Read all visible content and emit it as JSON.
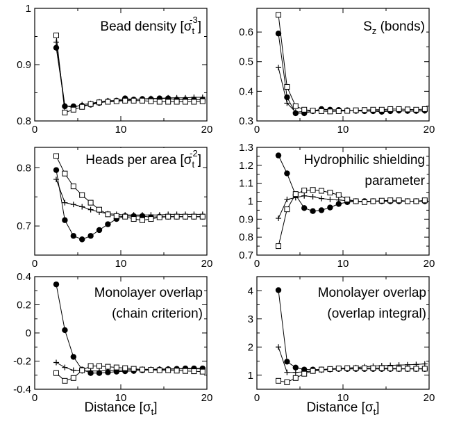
{
  "chart_data": [
    {
      "type": "line",
      "title": "Bead density [σ_t^-3]",
      "title_lines": [
        {
          "text": "Bead density [σ",
          "sub": "t",
          "sup": "-3",
          "after": "]"
        }
      ],
      "xlim": [
        0,
        20
      ],
      "ylim": [
        0.8,
        1.0
      ],
      "xticks": [
        0,
        10,
        20
      ],
      "yticks": [
        0.8,
        0.9,
        1.0
      ],
      "ytick_labels": [
        "0.8",
        "0.9",
        "1"
      ],
      "series": [
        {
          "marker": "filled-circle",
          "x": [
            2.5,
            3.5,
            4.5,
            5.5,
            6.5,
            7.5,
            8.5,
            9.5,
            10.5,
            11.5,
            12.5,
            13.5,
            14.5,
            15.5,
            16.5,
            17.5,
            18.5,
            19.5
          ],
          "y": [
            0.93,
            0.826,
            0.826,
            0.827,
            0.829,
            0.832,
            0.835,
            0.836,
            0.84,
            0.838,
            0.839,
            0.839,
            0.84,
            0.84,
            0.838,
            0.838,
            0.838,
            0.838
          ]
        },
        {
          "marker": "plus",
          "x": [
            2.5,
            3.5,
            4.5,
            5.5,
            6.5,
            7.5,
            8.5,
            9.5,
            10.5,
            11.5,
            12.5,
            13.5,
            14.5,
            15.5,
            16.5,
            17.5,
            18.5,
            19.5
          ],
          "y": [
            0.94,
            0.827,
            0.824,
            0.829,
            0.831,
            0.834,
            0.836,
            0.836,
            0.837,
            0.838,
            0.839,
            0.84,
            0.84,
            0.841,
            0.841,
            0.841,
            0.842,
            0.842
          ]
        },
        {
          "marker": "open-square",
          "x": [
            2.5,
            3.5,
            4.5,
            5.5,
            6.5,
            7.5,
            8.5,
            9.5,
            10.5,
            11.5,
            12.5,
            13.5,
            14.5,
            15.5,
            16.5,
            17.5,
            18.5,
            19.5
          ],
          "y": [
            0.952,
            0.815,
            0.82,
            0.825,
            0.83,
            0.833,
            0.834,
            0.835,
            0.836,
            0.836,
            0.836,
            0.835,
            0.834,
            0.834,
            0.834,
            0.834,
            0.834,
            0.835
          ]
        }
      ]
    },
    {
      "type": "line",
      "title": "S_z (bonds)",
      "title_lines": [
        {
          "text": "S",
          "sub": "z",
          "sup": "",
          "after": " (bonds)"
        }
      ],
      "xlim": [
        0,
        20
      ],
      "ylim": [
        0.3,
        0.68
      ],
      "xticks": [
        0,
        10,
        20
      ],
      "yticks": [
        0.3,
        0.4,
        0.5,
        0.6
      ],
      "ytick_labels": [
        "0.3",
        "0.4",
        "0.5",
        "0.6"
      ],
      "series": [
        {
          "marker": "filled-circle",
          "x": [
            2.5,
            3.5,
            4.5,
            5.5,
            6.5,
            7.5,
            8.5,
            9.5,
            10.5,
            11.5,
            12.5,
            13.5,
            14.5,
            15.5,
            16.5,
            17.5,
            18.5,
            19.5
          ],
          "y": [
            0.595,
            0.38,
            0.326,
            0.326,
            0.333,
            0.34,
            0.338,
            0.337,
            0.336,
            0.334,
            0.333,
            0.333,
            0.331,
            0.333,
            0.335,
            0.334,
            0.334,
            0.335
          ]
        },
        {
          "marker": "plus",
          "x": [
            2.5,
            3.5,
            4.5,
            5.5,
            6.5,
            7.5,
            8.5,
            9.5,
            10.5,
            11.5,
            12.5,
            13.5,
            14.5,
            15.5,
            16.5,
            17.5,
            18.5,
            19.5
          ],
          "y": [
            0.48,
            0.36,
            0.33,
            0.332,
            0.335,
            0.338,
            0.337,
            0.337,
            0.336,
            0.335,
            0.334,
            0.334,
            0.335,
            0.334,
            0.334,
            0.333,
            0.333,
            0.334
          ]
        },
        {
          "marker": "open-square",
          "x": [
            2.5,
            3.5,
            4.5,
            5.5,
            6.5,
            7.5,
            8.5,
            9.5,
            10.5,
            11.5,
            12.5,
            13.5,
            14.5,
            15.5,
            16.5,
            17.5,
            18.5,
            19.5
          ],
          "y": [
            0.658,
            0.415,
            0.35,
            0.338,
            0.335,
            0.333,
            0.332,
            0.333,
            0.334,
            0.336,
            0.337,
            0.338,
            0.338,
            0.34,
            0.34,
            0.339,
            0.338,
            0.34
          ]
        }
      ]
    },
    {
      "type": "line",
      "title": "Heads per area [σ_t^-2]",
      "title_lines": [
        {
          "text": "Heads per area [σ",
          "sub": "t",
          "sup": "-2",
          "after": "]"
        }
      ],
      "xlim": [
        0,
        20
      ],
      "ylim": [
        0.65,
        0.835
      ],
      "xticks": [
        0,
        10,
        20
      ],
      "yticks": [
        0.7,
        0.8
      ],
      "ytick_labels": [
        "0.7",
        "0.8"
      ],
      "series": [
        {
          "marker": "filled-circle",
          "x": [
            2.5,
            3.5,
            4.5,
            5.5,
            6.5,
            7.5,
            8.5,
            9.5,
            10.5,
            11.5,
            12.5,
            13.5,
            14.5,
            15.5,
            16.5,
            17.5,
            18.5,
            19.5
          ],
          "y": [
            0.796,
            0.71,
            0.683,
            0.677,
            0.683,
            0.693,
            0.703,
            0.712,
            0.717,
            0.717,
            0.717,
            0.715,
            0.716,
            0.716,
            0.716,
            0.716,
            0.716,
            0.716
          ]
        },
        {
          "marker": "plus",
          "x": [
            2.5,
            3.5,
            4.5,
            5.5,
            6.5,
            7.5,
            8.5,
            9.5,
            10.5,
            11.5,
            12.5,
            13.5,
            14.5,
            15.5,
            16.5,
            17.5,
            18.5,
            19.5
          ],
          "y": [
            0.78,
            0.74,
            0.737,
            0.733,
            0.728,
            0.724,
            0.721,
            0.72,
            0.719,
            0.719,
            0.719,
            0.719,
            0.719,
            0.72,
            0.72,
            0.72,
            0.72,
            0.72
          ]
        },
        {
          "marker": "open-square",
          "x": [
            2.5,
            3.5,
            4.5,
            5.5,
            6.5,
            7.5,
            8.5,
            9.5,
            10.5,
            11.5,
            12.5,
            13.5,
            14.5,
            15.5,
            16.5,
            17.5,
            18.5,
            19.5
          ],
          "y": [
            0.82,
            0.79,
            0.768,
            0.753,
            0.74,
            0.728,
            0.72,
            0.717,
            0.716,
            0.712,
            0.71,
            0.712,
            0.715,
            0.716,
            0.716,
            0.716,
            0.716,
            0.716
          ]
        }
      ]
    },
    {
      "type": "line",
      "title": "Hydrophilic shielding parameter",
      "title_lines": [
        {
          "text": "Hydrophilic shielding",
          "sub": "",
          "sup": "",
          "after": ""
        },
        {
          "text": "parameter",
          "sub": "",
          "sup": "",
          "after": ""
        }
      ],
      "xlim": [
        0,
        20
      ],
      "ylim": [
        0.7,
        1.3
      ],
      "xticks": [
        0,
        10,
        20
      ],
      "yticks": [
        0.7,
        0.8,
        0.9,
        1.0,
        1.1,
        1.2,
        1.3
      ],
      "ytick_labels": [
        "0.7",
        "0.8",
        "0.9",
        "1",
        "1.1",
        "1.2",
        "1.3"
      ],
      "series": [
        {
          "marker": "filled-circle",
          "x": [
            2.5,
            3.5,
            4.5,
            5.5,
            6.5,
            7.5,
            8.5,
            9.5,
            10.5,
            11.5,
            12.5,
            13.5,
            14.5,
            15.5,
            16.5,
            17.5,
            18.5,
            19.5
          ],
          "y": [
            1.255,
            1.155,
            1.035,
            0.962,
            0.945,
            0.95,
            0.965,
            0.985,
            0.995,
            1.0,
            1.0,
            1.0,
            1.0,
            1.0,
            1.0,
            1.0,
            1.0,
            1.0
          ]
        },
        {
          "marker": "plus",
          "x": [
            2.5,
            3.5,
            4.5,
            5.5,
            6.5,
            7.5,
            8.5,
            9.5,
            10.5,
            11.5,
            12.5,
            13.5,
            14.5,
            15.5,
            16.5,
            17.5,
            18.5,
            19.5
          ],
          "y": [
            0.905,
            1.01,
            1.02,
            1.03,
            1.025,
            1.015,
            1.01,
            1.007,
            1.003,
            1.0,
            1.0,
            1.0,
            1.0,
            1.0,
            1.0,
            1.0,
            1.0,
            1.0
          ]
        },
        {
          "marker": "open-square",
          "x": [
            2.5,
            3.5,
            4.5,
            5.5,
            6.5,
            7.5,
            8.5,
            9.5,
            10.5,
            11.5,
            12.5,
            13.5,
            14.5,
            15.5,
            16.5,
            17.5,
            18.5,
            19.5
          ],
          "y": [
            0.75,
            0.955,
            1.04,
            1.06,
            1.063,
            1.058,
            1.048,
            1.035,
            1.01,
            1.0,
            0.995,
            1.0,
            1.003,
            1.005,
            1.005,
            1.0,
            1.0,
            1.005
          ]
        }
      ]
    },
    {
      "type": "line",
      "title": "Monolayer overlap (chain criterion)",
      "title_lines": [
        {
          "text": "Monolayer overlap",
          "sub": "",
          "sup": "",
          "after": ""
        },
        {
          "text": "(chain criterion)",
          "sub": "",
          "sup": "",
          "after": ""
        }
      ],
      "xlabel": "Distance [σ_t]",
      "xlim": [
        0,
        20
      ],
      "ylim": [
        -0.4,
        0.4
      ],
      "xticks": [
        0,
        10,
        20
      ],
      "yticks": [
        -0.4,
        -0.2,
        0,
        0.2,
        0.4
      ],
      "ytick_labels": [
        "-0.4",
        "-0.2",
        "0",
        "0.2",
        "0.4"
      ],
      "series": [
        {
          "marker": "filled-circle",
          "x": [
            2.5,
            3.5,
            4.5,
            5.5,
            6.5,
            7.5,
            8.5,
            9.5,
            10.5,
            11.5,
            12.5,
            13.5,
            14.5,
            15.5,
            16.5,
            17.5,
            18.5,
            19.5
          ],
          "y": [
            0.345,
            0.02,
            -0.17,
            -0.26,
            -0.285,
            -0.285,
            -0.28,
            -0.275,
            -0.272,
            -0.27,
            -0.265,
            -0.262,
            -0.26,
            -0.258,
            -0.255,
            -0.252,
            -0.252,
            -0.252
          ]
        },
        {
          "marker": "plus",
          "x": [
            2.5,
            3.5,
            4.5,
            5.5,
            6.5,
            7.5,
            8.5,
            9.5,
            10.5,
            11.5,
            12.5,
            13.5,
            14.5,
            15.5,
            16.5,
            17.5,
            18.5,
            19.5
          ],
          "y": [
            -0.21,
            -0.245,
            -0.265,
            -0.27,
            -0.27,
            -0.27,
            -0.268,
            -0.265,
            -0.262,
            -0.26,
            -0.258,
            -0.258,
            -0.257,
            -0.256,
            -0.255,
            -0.255,
            -0.255,
            -0.255
          ]
        },
        {
          "marker": "open-square",
          "x": [
            2.5,
            3.5,
            4.5,
            5.5,
            6.5,
            7.5,
            8.5,
            9.5,
            10.5,
            11.5,
            12.5,
            13.5,
            14.5,
            15.5,
            16.5,
            17.5,
            18.5,
            19.5
          ],
          "y": [
            -0.285,
            -0.34,
            -0.32,
            -0.265,
            -0.235,
            -0.235,
            -0.24,
            -0.245,
            -0.25,
            -0.255,
            -0.26,
            -0.262,
            -0.265,
            -0.265,
            -0.268,
            -0.27,
            -0.272,
            -0.275
          ]
        }
      ]
    },
    {
      "type": "line",
      "title": "Monolayer overlap (overlap integral)",
      "title_lines": [
        {
          "text": "Monolayer overlap",
          "sub": "",
          "sup": "",
          "after": ""
        },
        {
          "text": "(overlap integral)",
          "sub": "",
          "sup": "",
          "after": ""
        }
      ],
      "xlabel": "Distance [σ_t]",
      "xlim": [
        0,
        20
      ],
      "ylim": [
        0.5,
        4.5
      ],
      "xticks": [
        0,
        10,
        20
      ],
      "yticks": [
        1,
        2,
        3,
        4
      ],
      "ytick_labels": [
        "1",
        "2",
        "3",
        "4"
      ],
      "series": [
        {
          "marker": "filled-circle",
          "x": [
            2.5,
            3.5,
            4.5,
            5.5,
            6.5,
            7.5,
            8.5,
            9.5,
            10.5,
            11.5,
            12.5,
            13.5,
            14.5,
            15.5,
            16.5,
            17.5,
            18.5,
            19.5
          ],
          "y": [
            4.02,
            1.48,
            1.27,
            1.2,
            1.2,
            1.2,
            1.21,
            1.22,
            1.22,
            1.22,
            1.22,
            1.22,
            1.22,
            1.22,
            1.22,
            1.22,
            1.22,
            1.22
          ]
        },
        {
          "marker": "plus",
          "x": [
            2.5,
            3.5,
            4.5,
            5.5,
            6.5,
            7.5,
            8.5,
            9.5,
            10.5,
            11.5,
            12.5,
            13.5,
            14.5,
            15.5,
            16.5,
            17.5,
            18.5,
            19.5
          ],
          "y": [
            2.0,
            1.1,
            1.1,
            1.12,
            1.15,
            1.18,
            1.2,
            1.22,
            1.25,
            1.27,
            1.3,
            1.32,
            1.34,
            1.35,
            1.36,
            1.37,
            1.38,
            1.4
          ]
        },
        {
          "marker": "open-square",
          "x": [
            2.5,
            3.5,
            4.5,
            5.5,
            6.5,
            7.5,
            8.5,
            9.5,
            10.5,
            11.5,
            12.5,
            13.5,
            14.5,
            15.5,
            16.5,
            17.5,
            18.5,
            19.5
          ],
          "y": [
            0.8,
            0.75,
            0.9,
            1.05,
            1.15,
            1.2,
            1.22,
            1.24,
            1.25,
            1.25,
            1.25,
            1.25,
            1.25,
            1.24,
            1.23,
            1.23,
            1.23,
            1.23
          ]
        }
      ]
    }
  ]
}
